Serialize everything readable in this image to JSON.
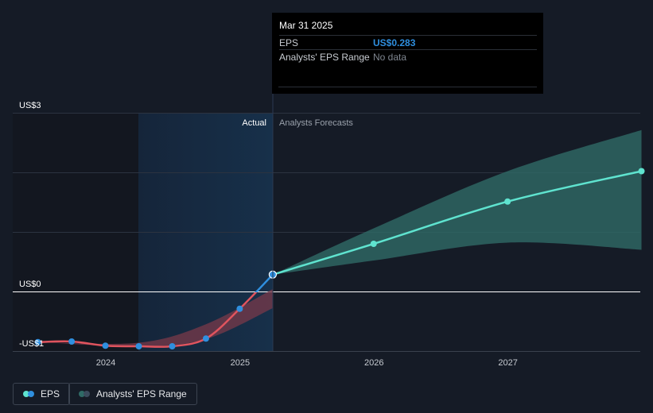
{
  "chart_data": {
    "type": "line",
    "y_ticks": [
      "US$3",
      "US$0",
      "-US$1"
    ],
    "x_ticks": [
      "2024",
      "2025",
      "2026",
      "2027"
    ],
    "ylim": [
      -1,
      3
    ],
    "section_labels": {
      "actual": "Actual",
      "forecast": "Analysts Forecasts"
    },
    "series": [
      {
        "name": "EPS",
        "actual_points": [
          {
            "x": "2023-06-30",
            "y": -0.85
          },
          {
            "x": "2023-09-30",
            "y": -0.84
          },
          {
            "x": "2023-12-31",
            "y": -0.91
          },
          {
            "x": "2024-03-31",
            "y": -0.92
          },
          {
            "x": "2024-06-30",
            "y": -0.92
          },
          {
            "x": "2024-09-30",
            "y": -0.79
          },
          {
            "x": "2024-12-31",
            "y": -0.29
          },
          {
            "x": "2025-03-31",
            "y": 0.283
          }
        ],
        "forecast_points": [
          {
            "x": "2025-03-31",
            "y": 0.283
          },
          {
            "x": "2025-12-31",
            "y": 0.8
          },
          {
            "x": "2026-12-31",
            "y": 1.51
          },
          {
            "x": "2027-12-31",
            "y": 2.02
          }
        ]
      },
      {
        "name": "Analysts' EPS Range",
        "past_band": [
          {
            "x": "2023-06-30",
            "low": -0.85,
            "high": -0.85
          },
          {
            "x": "2024-03-31",
            "low": -0.92,
            "high": -0.86
          },
          {
            "x": "2024-09-30",
            "low": -0.8,
            "high": -0.55
          },
          {
            "x": "2025-03-31",
            "low": -0.28,
            "high": 0.04
          }
        ],
        "forecast_band": [
          {
            "x": "2025-03-31",
            "low": 0.283,
            "high": 0.283
          },
          {
            "x": "2025-12-31",
            "low": 0.52,
            "high": 1.06
          },
          {
            "x": "2026-12-31",
            "low": 0.82,
            "high": 2.02
          },
          {
            "x": "2027-12-31",
            "low": 0.7,
            "high": 2.71
          }
        ]
      }
    ]
  },
  "tooltip": {
    "date": "Mar 31 2025",
    "eps_label": "EPS",
    "eps_value": "US$0.283",
    "range_label": "Analysts' EPS Range",
    "range_value": "No data"
  },
  "legend": {
    "eps_label": "EPS",
    "range_label": "Analysts' EPS Range"
  },
  "colors": {
    "background": "#151b26",
    "eps_negative": "#e0545e",
    "eps_actual": "#2f8fdf",
    "eps_forecast": "#5fe3cf",
    "range_forecast": "#2f6a66",
    "range_past": "#7a3a4a",
    "tooltip_value": "#2f8fdf"
  }
}
